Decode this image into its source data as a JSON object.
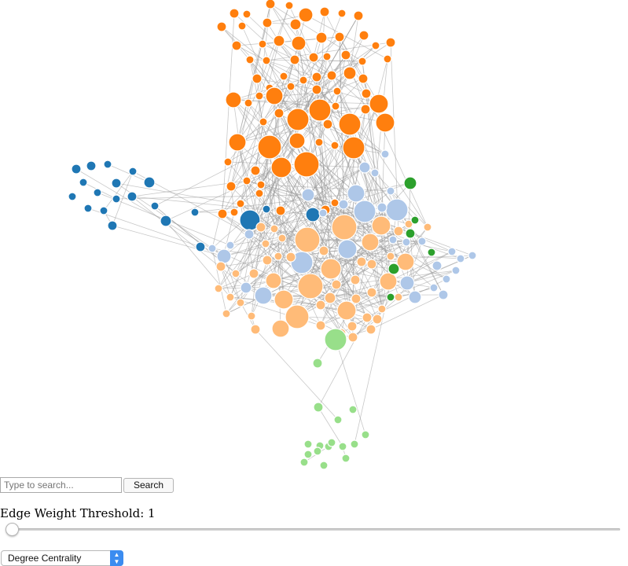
{
  "search": {
    "placeholder": "Type to search...",
    "value": "",
    "button_label": "Search"
  },
  "threshold": {
    "label": "Edge Weight Threshold: 1",
    "value": 1
  },
  "centrality_select": {
    "selected": "Degree Centrality"
  },
  "palette": {
    "dark_blue": "#1f77b4",
    "light_blue": "#aec7e8",
    "dark_orange": "#ff7f0e",
    "light_orange": "#ffbb78",
    "dark_green": "#2ca02c",
    "light_green": "#98df8a",
    "edge": "#9a9a9a"
  },
  "icons": {
    "select_arrow": "chevron-up-down-icon"
  }
}
